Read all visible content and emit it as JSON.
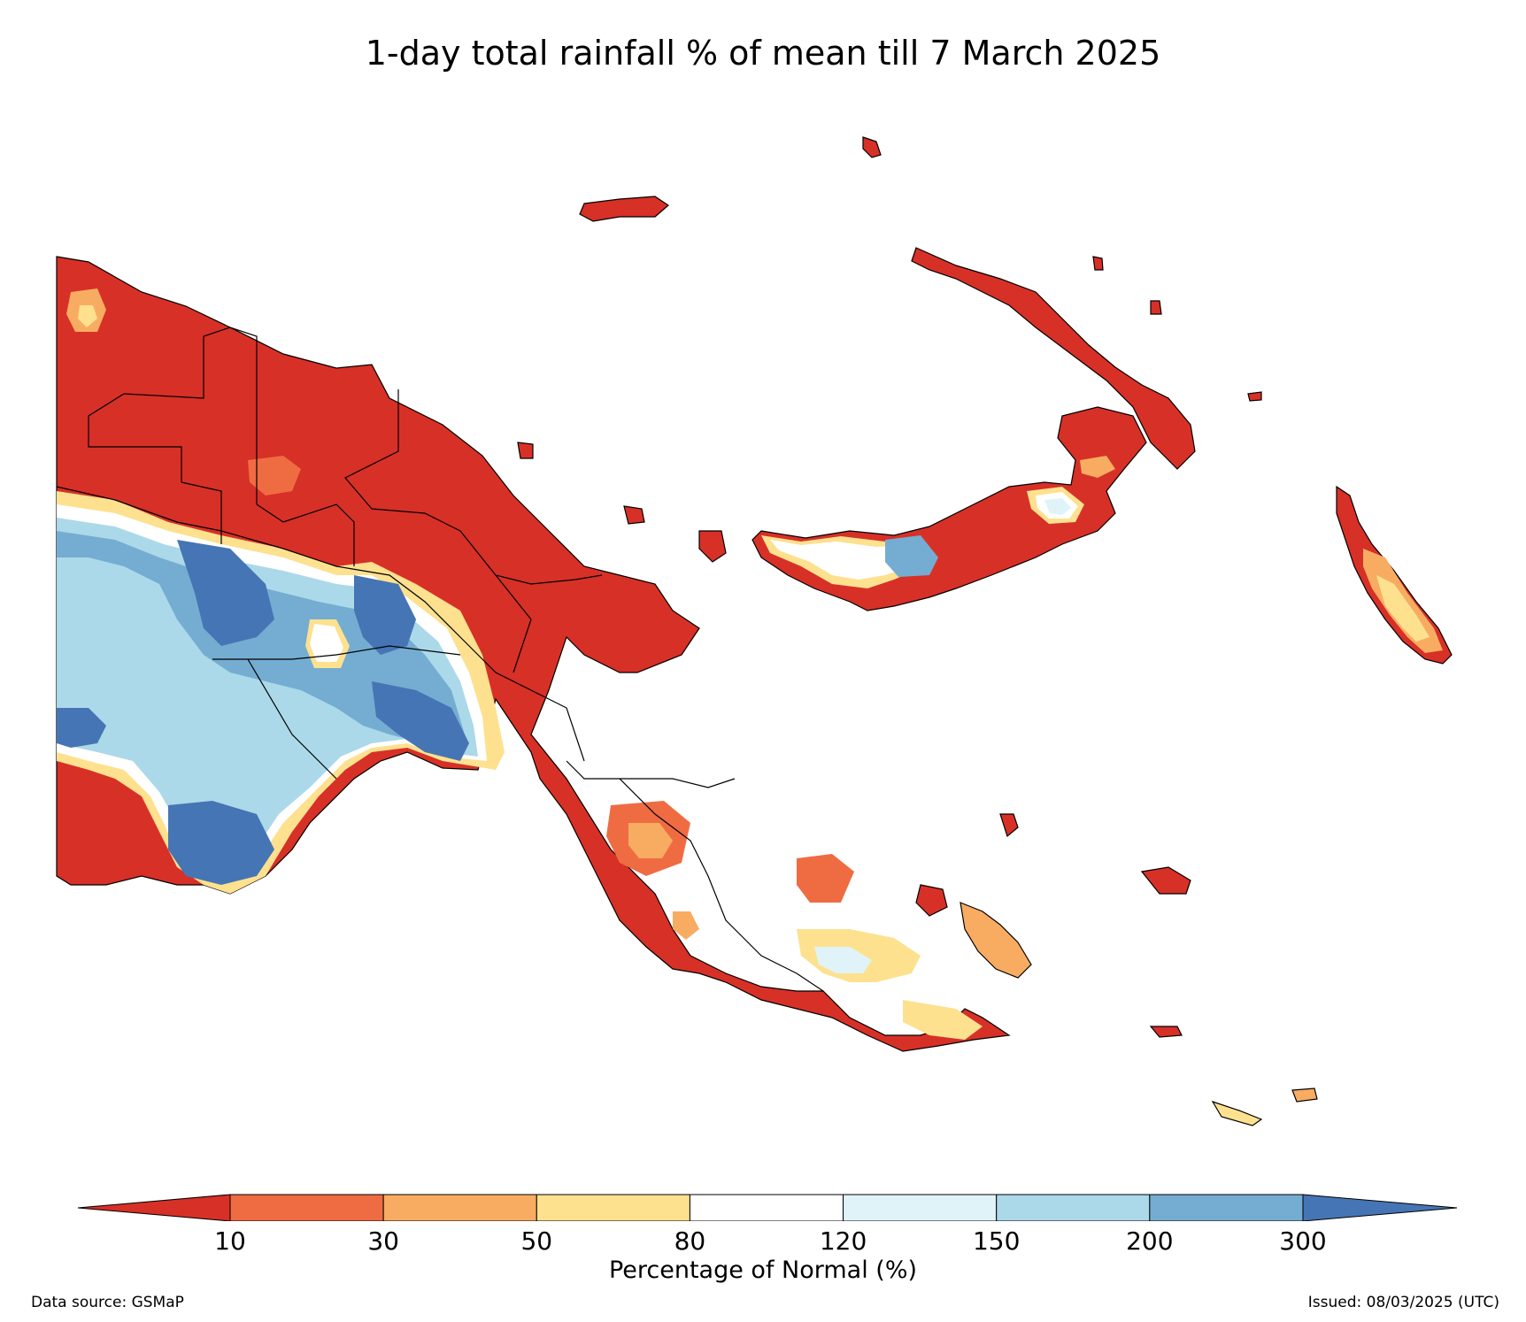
{
  "title": "1-day total rainfall % of mean till 7 March 2025",
  "colorbar": {
    "title": "Percentage of Normal (%)",
    "ticks": [
      "10",
      "30",
      "50",
      "80",
      "120",
      "150",
      "200",
      "300"
    ],
    "colors": [
      "#d73027",
      "#ef6c42",
      "#f8ac62",
      "#fde18f",
      "#ffffff",
      "#e0f3f8",
      "#abd9e9",
      "#74add1",
      "#4575b4"
    ],
    "extend": "both"
  },
  "footer": {
    "source": "Data source: GSMaP",
    "issued": "Issued: 08/03/2025 (UTC)"
  }
}
